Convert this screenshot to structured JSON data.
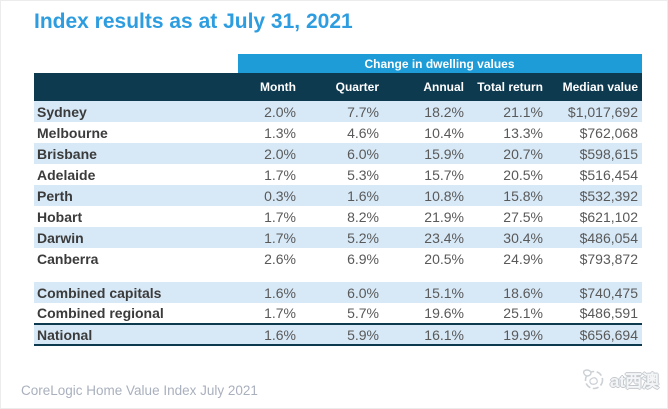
{
  "title": "Index results as at July 31, 2021",
  "chart_data": {
    "type": "table",
    "title": "Index results as at July 31, 2021",
    "band_label": "Change in dwelling values",
    "columns": [
      "Month",
      "Quarter",
      "Annual",
      "Total return",
      "Median value"
    ],
    "rows": [
      {
        "name": "Sydney",
        "values": [
          "2.0%",
          "7.7%",
          "18.2%",
          "21.1%",
          "$1,017,692"
        ],
        "shaded": true
      },
      {
        "name": "Melbourne",
        "values": [
          "1.3%",
          "4.6%",
          "10.4%",
          "13.3%",
          "$762,068"
        ],
        "shaded": false
      },
      {
        "name": "Brisbane",
        "values": [
          "2.0%",
          "6.0%",
          "15.9%",
          "20.7%",
          "$598,615"
        ],
        "shaded": true
      },
      {
        "name": "Adelaide",
        "values": [
          "1.7%",
          "5.3%",
          "15.7%",
          "20.5%",
          "$516,454"
        ],
        "shaded": false
      },
      {
        "name": "Perth",
        "values": [
          "0.3%",
          "1.6%",
          "10.8%",
          "15.8%",
          "$532,392"
        ],
        "shaded": true
      },
      {
        "name": "Hobart",
        "values": [
          "1.7%",
          "8.2%",
          "21.9%",
          "27.5%",
          "$621,102"
        ],
        "shaded": false
      },
      {
        "name": "Darwin",
        "values": [
          "1.7%",
          "5.2%",
          "23.4%",
          "30.4%",
          "$486,054"
        ],
        "shaded": true
      },
      {
        "name": "Canberra",
        "values": [
          "2.6%",
          "6.9%",
          "20.5%",
          "24.9%",
          "$793,872"
        ],
        "shaded": false
      },
      {
        "name": "Combined capitals",
        "values": [
          "1.6%",
          "6.0%",
          "15.1%",
          "18.6%",
          "$740,475"
        ],
        "shaded": true,
        "spacer_before": true
      },
      {
        "name": "Combined regional",
        "values": [
          "1.7%",
          "5.7%",
          "19.6%",
          "25.1%",
          "$486,591"
        ],
        "shaded": false
      },
      {
        "name": "National",
        "values": [
          "1.6%",
          "5.9%",
          "16.1%",
          "19.9%",
          "$656,694"
        ],
        "shaded": true,
        "emphasized": true
      }
    ]
  },
  "footer": {
    "source": "CoreLogic Home Value Index July 2021"
  },
  "watermark": {
    "label": "at西澳",
    "icon": "kangaroo-badge-icon"
  },
  "colors": {
    "title_blue": "#2d9de0",
    "band_blue": "#1e9cd7",
    "header_navy": "#0e3a50",
    "row_shade_blue": "#d7e8f6",
    "city_text": "#3b3b3b",
    "value_text": "#595959",
    "caption_gray": "#a9b0bd"
  }
}
